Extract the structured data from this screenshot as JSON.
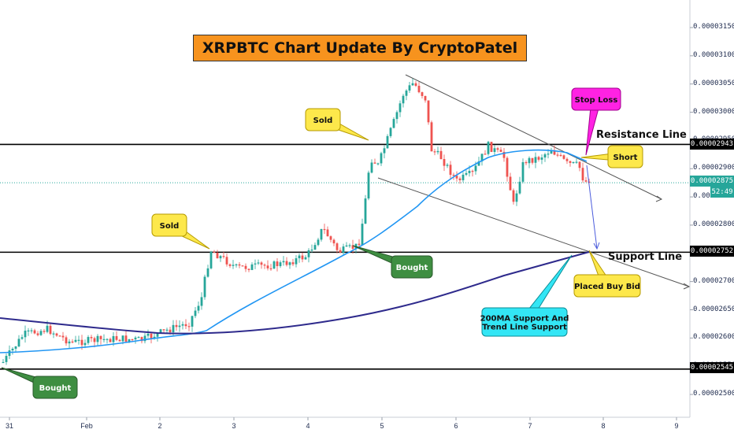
{
  "chart_data": {
    "type": "candlestick",
    "title": "XRPBTC Chart Update By CryptoPatel",
    "y_ticks": [
      "0.00003150",
      "0.00003100",
      "0.00003050",
      "0.00003000",
      "0.00002950",
      "0.00002900",
      "0.00002850",
      "0.00002800",
      "0.00002750",
      "0.00002700",
      "0.00002650",
      "0.00002600",
      "0.00002550",
      "0.00002500"
    ],
    "ylim": [
      2.47e-05,
      3.2e-05
    ],
    "x_ticks": [
      "31",
      "Feb",
      "2",
      "3",
      "4",
      "5",
      "6",
      "7",
      "8",
      "9"
    ],
    "price_boxes": {
      "resistance": "0.00002943",
      "current": "0.00002875",
      "countdown": "52:49",
      "support": "0.00002752",
      "bottom": "0.00002545"
    },
    "horizontal_levels": [
      {
        "label": "Resistance Line",
        "value": 2.943e-05
      },
      {
        "label": "Support Line",
        "value": 2.752e-05
      },
      {
        "label": "",
        "value": 2.545e-05
      }
    ],
    "current_price": 2.875e-05,
    "series": [
      {
        "name": "",
        "color": "#2196f3",
        "role": "moving-average"
      },
      {
        "name": "",
        "color": "#2e2a8c",
        "role": "200MA"
      }
    ],
    "annotations": [
      {
        "text": "Sold",
        "style": "yellow"
      },
      {
        "text": "Sold",
        "style": "yellow"
      },
      {
        "text": "Bought",
        "style": "green"
      },
      {
        "text": "Bought",
        "style": "green"
      },
      {
        "text": "Stop Loss",
        "style": "magenta"
      },
      {
        "text": "Short",
        "style": "yellow"
      },
      {
        "text": "Placed Buy Bid",
        "style": "yellow"
      },
      {
        "text": "200MA Support And Trend Line Support",
        "style": "cyan"
      }
    ],
    "colors": {
      "up": "#26a69a",
      "down": "#ef5350",
      "level": "#000000",
      "ma_fast": "#2196f3",
      "ma_slow": "#2e2a8c",
      "projection": "#4a5bdc"
    }
  },
  "labels": {
    "resistance": "Resistance Line",
    "support": "Support Line"
  }
}
